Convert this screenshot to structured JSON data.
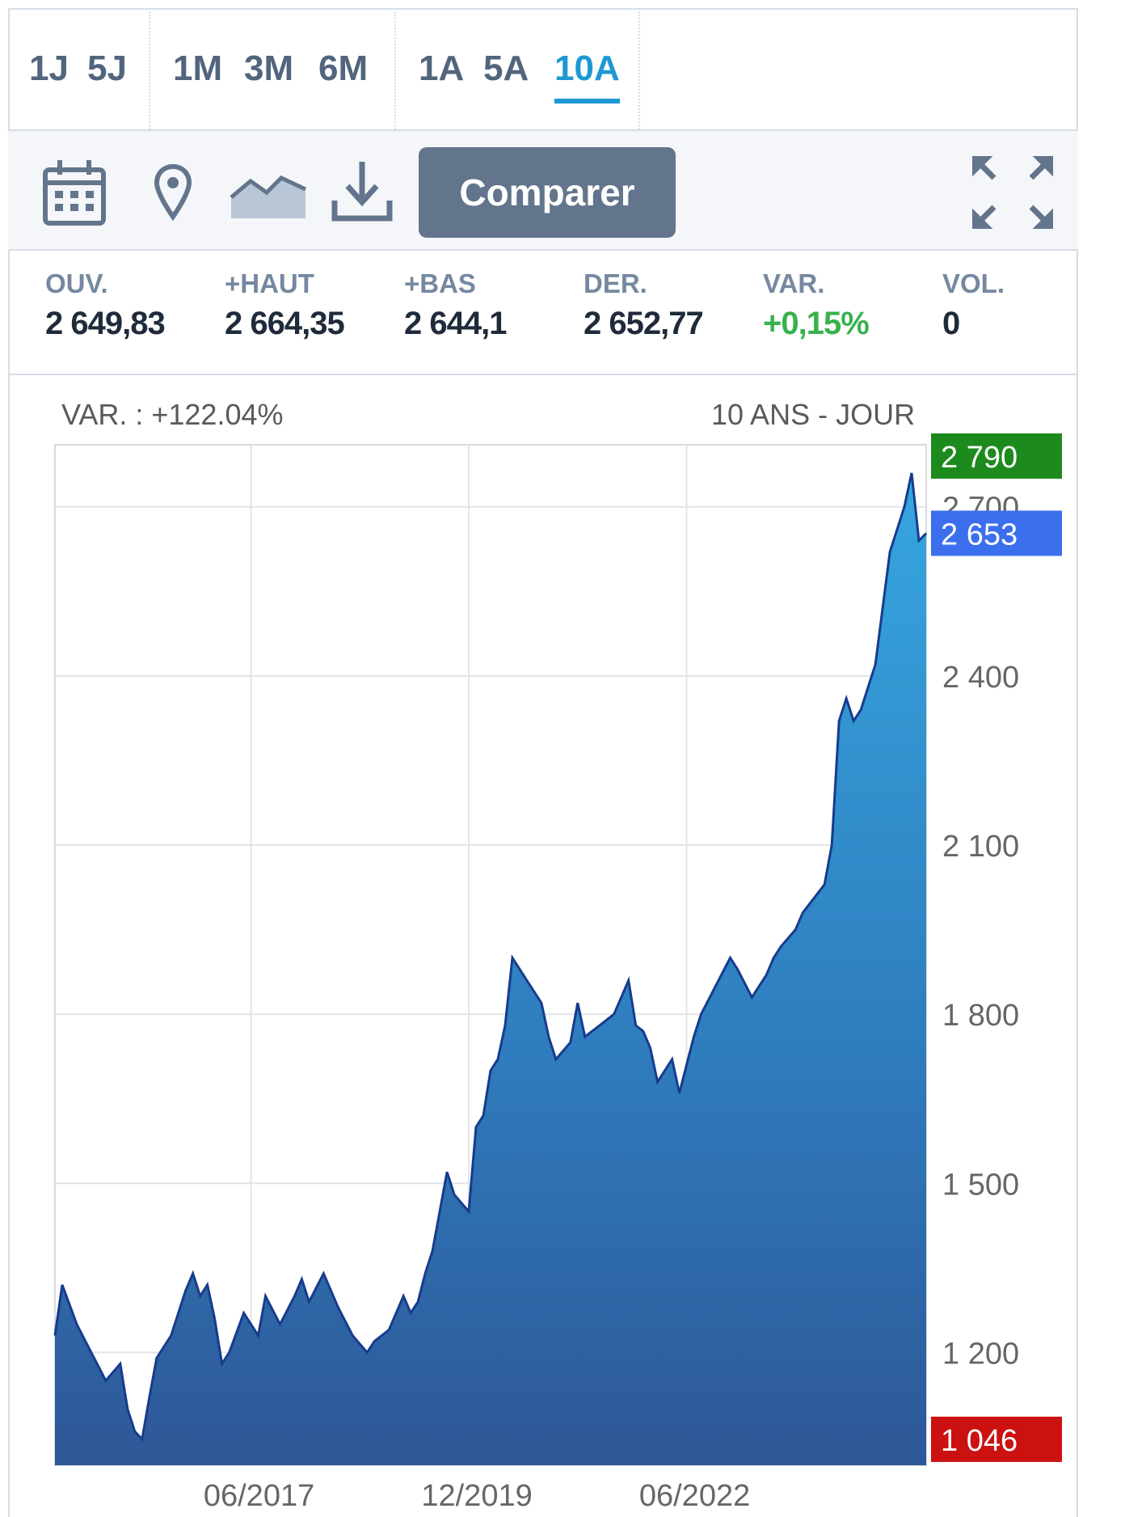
{
  "periods": {
    "groups": [
      [
        "1J",
        "5J"
      ],
      [
        "1M",
        "3M",
        "6M"
      ],
      [
        "1A",
        "5A",
        "10A"
      ]
    ],
    "active": "10A"
  },
  "toolbar": {
    "icons": [
      "calendar-icon",
      "location-pin-icon",
      "area-chart-icon",
      "download-icon",
      "fullscreen-icon"
    ],
    "compare_label": "Comparer"
  },
  "stats": [
    {
      "label": "OUV.",
      "value": "2 649,83"
    },
    {
      "label": "+HAUT",
      "value": "2 664,35"
    },
    {
      "label": "+BAS",
      "value": "2 644,1"
    },
    {
      "label": "DER.",
      "value": "2 652,77"
    },
    {
      "label": "VAR.",
      "value": "+0,15%",
      "positive": true
    },
    {
      "label": "VOL.",
      "value": "0"
    }
  ],
  "chart_header": {
    "variation": "VAR. : +122.04%",
    "period": "10 ANS - JOUR"
  },
  "colors": {
    "accent": "#1e98d3",
    "line": "#173c8c",
    "high_badge": "#1d8a1d",
    "last_badge": "#3b6fee",
    "low_badge": "#cc1111",
    "positive": "#37b24d"
  },
  "chart_data": {
    "type": "area",
    "title": "",
    "xlabel": "",
    "ylabel": "",
    "x_ticks": [
      "06/2017",
      "12/2019",
      "06/2022"
    ],
    "y_ticks": [
      "1 200",
      "1 500",
      "1 800",
      "2 100",
      "2 400",
      "2 700"
    ],
    "y_tick_values": [
      1200,
      1500,
      1800,
      2100,
      2400,
      2700
    ],
    "ylim": [
      1000,
      2810
    ],
    "xlim": [
      "2015-03",
      "2025-03"
    ],
    "grid": true,
    "badges": [
      {
        "label": "2 790",
        "value": 2790,
        "kind": "high"
      },
      {
        "label": "2 653",
        "value": 2653,
        "kind": "last"
      },
      {
        "label": "1 046",
        "value": 1046,
        "kind": "low"
      }
    ],
    "series": [
      {
        "values": [
          [
            "2015-03",
            1230
          ],
          [
            "2015-04",
            1320
          ],
          [
            "2015-06",
            1250
          ],
          [
            "2015-08",
            1200
          ],
          [
            "2015-10",
            1150
          ],
          [
            "2015-12",
            1180
          ],
          [
            "2016-01",
            1100
          ],
          [
            "2016-02",
            1060
          ],
          [
            "2016-03",
            1046
          ],
          [
            "2016-04",
            1120
          ],
          [
            "2016-05",
            1190
          ],
          [
            "2016-07",
            1230
          ],
          [
            "2016-09",
            1310
          ],
          [
            "2016-10",
            1340
          ],
          [
            "2016-11",
            1300
          ],
          [
            "2016-12",
            1320
          ],
          [
            "2017-01",
            1260
          ],
          [
            "2017-02",
            1180
          ],
          [
            "2017-03",
            1200
          ],
          [
            "2017-05",
            1270
          ],
          [
            "2017-07",
            1230
          ],
          [
            "2017-08",
            1300
          ],
          [
            "2017-10",
            1250
          ],
          [
            "2017-12",
            1300
          ],
          [
            "2018-01",
            1330
          ],
          [
            "2018-02",
            1290
          ],
          [
            "2018-04",
            1340
          ],
          [
            "2018-06",
            1280
          ],
          [
            "2018-08",
            1230
          ],
          [
            "2018-10",
            1200
          ],
          [
            "2018-11",
            1220
          ],
          [
            "2019-01",
            1240
          ],
          [
            "2019-03",
            1300
          ],
          [
            "2019-04",
            1270
          ],
          [
            "2019-05",
            1290
          ],
          [
            "2019-06",
            1340
          ],
          [
            "2019-07",
            1380
          ],
          [
            "2019-09",
            1520
          ],
          [
            "2019-10",
            1480
          ],
          [
            "2019-12",
            1450
          ],
          [
            "2020-01",
            1600
          ],
          [
            "2020-02",
            1620
          ],
          [
            "2020-03",
            1700
          ],
          [
            "2020-04",
            1720
          ],
          [
            "2020-05",
            1780
          ],
          [
            "2020-06",
            1900
          ],
          [
            "2020-08",
            1860
          ],
          [
            "2020-10",
            1820
          ],
          [
            "2020-11",
            1760
          ],
          [
            "2020-12",
            1720
          ],
          [
            "2021-02",
            1750
          ],
          [
            "2021-03",
            1820
          ],
          [
            "2021-04",
            1760
          ],
          [
            "2021-06",
            1780
          ],
          [
            "2021-08",
            1800
          ],
          [
            "2021-10",
            1860
          ],
          [
            "2021-11",
            1780
          ],
          [
            "2021-12",
            1770
          ],
          [
            "2022-01",
            1740
          ],
          [
            "2022-02",
            1680
          ],
          [
            "2022-04",
            1720
          ],
          [
            "2022-05",
            1660
          ],
          [
            "2022-07",
            1760
          ],
          [
            "2022-08",
            1800
          ],
          [
            "2022-10",
            1850
          ],
          [
            "2022-12",
            1900
          ],
          [
            "2023-01",
            1880
          ],
          [
            "2023-03",
            1830
          ],
          [
            "2023-05",
            1870
          ],
          [
            "2023-06",
            1900
          ],
          [
            "2023-07",
            1920
          ],
          [
            "2023-09",
            1950
          ],
          [
            "2023-10",
            1980
          ],
          [
            "2024-01",
            2030
          ],
          [
            "2024-02",
            2100
          ],
          [
            "2024-03",
            2320
          ],
          [
            "2024-04",
            2360
          ],
          [
            "2024-05",
            2320
          ],
          [
            "2024-06",
            2340
          ],
          [
            "2024-07",
            2380
          ],
          [
            "2024-08",
            2420
          ],
          [
            "2024-09",
            2520
          ],
          [
            "2024-10",
            2620
          ],
          [
            "2024-11",
            2660
          ],
          [
            "2024-12",
            2700
          ],
          [
            "2025-01",
            2760
          ],
          [
            "2025-02",
            2640
          ],
          [
            "2025-03",
            2653
          ]
        ]
      }
    ]
  }
}
